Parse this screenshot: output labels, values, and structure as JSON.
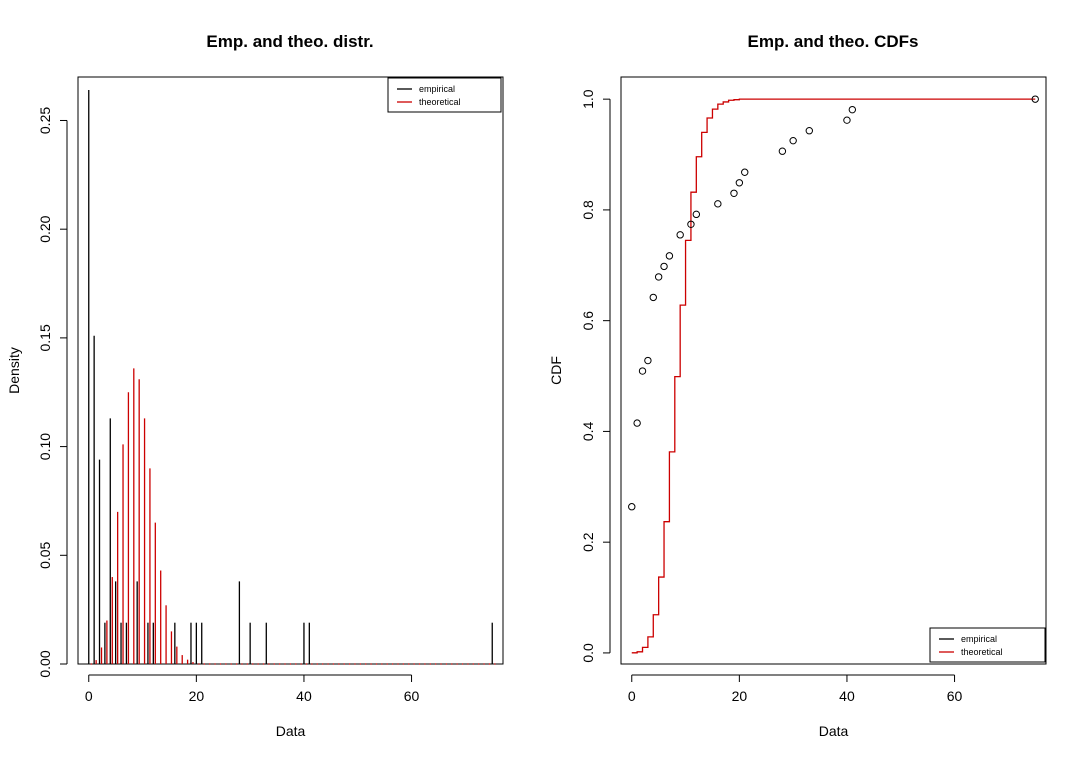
{
  "colors": {
    "empirical": "#000000",
    "theoretical": "#cc0000",
    "background": "#ffffff"
  },
  "chart_data": [
    {
      "type": "bar",
      "title": "Emp. and theo. distr.",
      "xlabel": "Data",
      "ylabel": "Density",
      "xlim": [
        -2,
        77
      ],
      "ylim": [
        0,
        0.27
      ],
      "xticks": [
        0,
        20,
        40,
        60
      ],
      "yticks": [
        0.0,
        0.05,
        0.1,
        0.15,
        0.2,
        0.25
      ],
      "ytick_labels": [
        "0.00",
        "0.05",
        "0.10",
        "0.15",
        "0.20",
        "0.25"
      ],
      "legend_position": "top-right",
      "series": [
        {
          "name": "empirical",
          "color": "#000000",
          "x": [
            0,
            1,
            2,
            3,
            4,
            5,
            6,
            7,
            9,
            11,
            12,
            16,
            19,
            20,
            21,
            28,
            30,
            33,
            40,
            41,
            75
          ],
          "values": [
            0.264,
            0.151,
            0.094,
            0.019,
            0.113,
            0.038,
            0.019,
            0.019,
            0.038,
            0.019,
            0.019,
            0.019,
            0.019,
            0.019,
            0.019,
            0.038,
            0.019,
            0.019,
            0.019,
            0.019,
            0.019
          ]
        },
        {
          "name": "theoretical",
          "color": "#cc0000",
          "x": [
            0,
            1,
            2,
            3,
            4,
            5,
            6,
            7,
            8,
            9,
            10,
            11,
            12,
            13,
            14,
            15,
            16,
            17,
            18,
            19,
            20,
            21,
            22,
            23,
            24,
            25,
            26,
            27,
            28,
            29,
            30,
            31,
            32,
            33,
            34,
            35,
            36,
            37,
            38,
            39,
            40,
            41,
            42,
            43,
            44,
            45,
            46,
            47,
            48,
            49,
            50,
            51,
            52,
            53,
            54,
            55,
            56,
            57,
            58,
            59,
            60,
            61,
            62,
            63,
            64,
            65,
            66,
            67,
            68,
            69,
            70,
            71,
            72,
            73,
            74,
            75
          ],
          "values": [
            0.0002,
            0.0018,
            0.0076,
            0.02,
            0.04,
            0.07,
            0.101,
            0.125,
            0.136,
            0.131,
            0.113,
            0.09,
            0.065,
            0.043,
            0.027,
            0.015,
            0.008,
            0.0041,
            0.002,
            0.0009,
            0.0004,
            0.0002,
            0.0001,
            0,
            0,
            0,
            0,
            0,
            0,
            0,
            0,
            0,
            0,
            0,
            0,
            0,
            0,
            0,
            0,
            0,
            0,
            0,
            0,
            0,
            0,
            0,
            0,
            0,
            0,
            0,
            0,
            0,
            0,
            0,
            0,
            0,
            0,
            0,
            0,
            0,
            0,
            0,
            0,
            0,
            0,
            0,
            0,
            0,
            0,
            0,
            0,
            0,
            0,
            0,
            0,
            0
          ]
        }
      ]
    },
    {
      "type": "line",
      "title": "Emp. and theo. CDFs",
      "xlabel": "Data",
      "ylabel": "CDF",
      "xlim": [
        -2,
        77
      ],
      "ylim": [
        -0.02,
        1.04
      ],
      "xticks": [
        0,
        20,
        40,
        60
      ],
      "yticks": [
        0.0,
        0.2,
        0.4,
        0.6,
        0.8,
        1.0
      ],
      "ytick_labels": [
        "0.0",
        "0.2",
        "0.4",
        "0.6",
        "0.8",
        "1.0"
      ],
      "legend_position": "bottom-right",
      "series": [
        {
          "name": "empirical",
          "color": "#000000",
          "style": "points",
          "x": [
            0,
            1,
            2,
            3,
            4,
            5,
            6,
            7,
            9,
            11,
            12,
            16,
            19,
            20,
            21,
            28,
            30,
            33,
            40,
            41,
            75
          ],
          "values": [
            0.264,
            0.415,
            0.509,
            0.528,
            0.642,
            0.679,
            0.698,
            0.717,
            0.755,
            0.774,
            0.792,
            0.811,
            0.83,
            0.849,
            0.868,
            0.906,
            0.925,
            0.943,
            0.962,
            0.981,
            1.0
          ]
        },
        {
          "name": "theoretical",
          "color": "#cc0000",
          "style": "step",
          "x": [
            0,
            1,
            2,
            3,
            4,
            5,
            6,
            7,
            8,
            9,
            10,
            11,
            12,
            13,
            14,
            15,
            16,
            17,
            18,
            19,
            20,
            21,
            22,
            75
          ],
          "values": [
            0.0002,
            0.002,
            0.01,
            0.029,
            0.069,
            0.137,
            0.237,
            0.363,
            0.499,
            0.628,
            0.745,
            0.832,
            0.896,
            0.94,
            0.966,
            0.982,
            0.991,
            0.995,
            0.998,
            0.999,
            1.0,
            1.0,
            1.0,
            1.0
          ]
        }
      ]
    }
  ]
}
